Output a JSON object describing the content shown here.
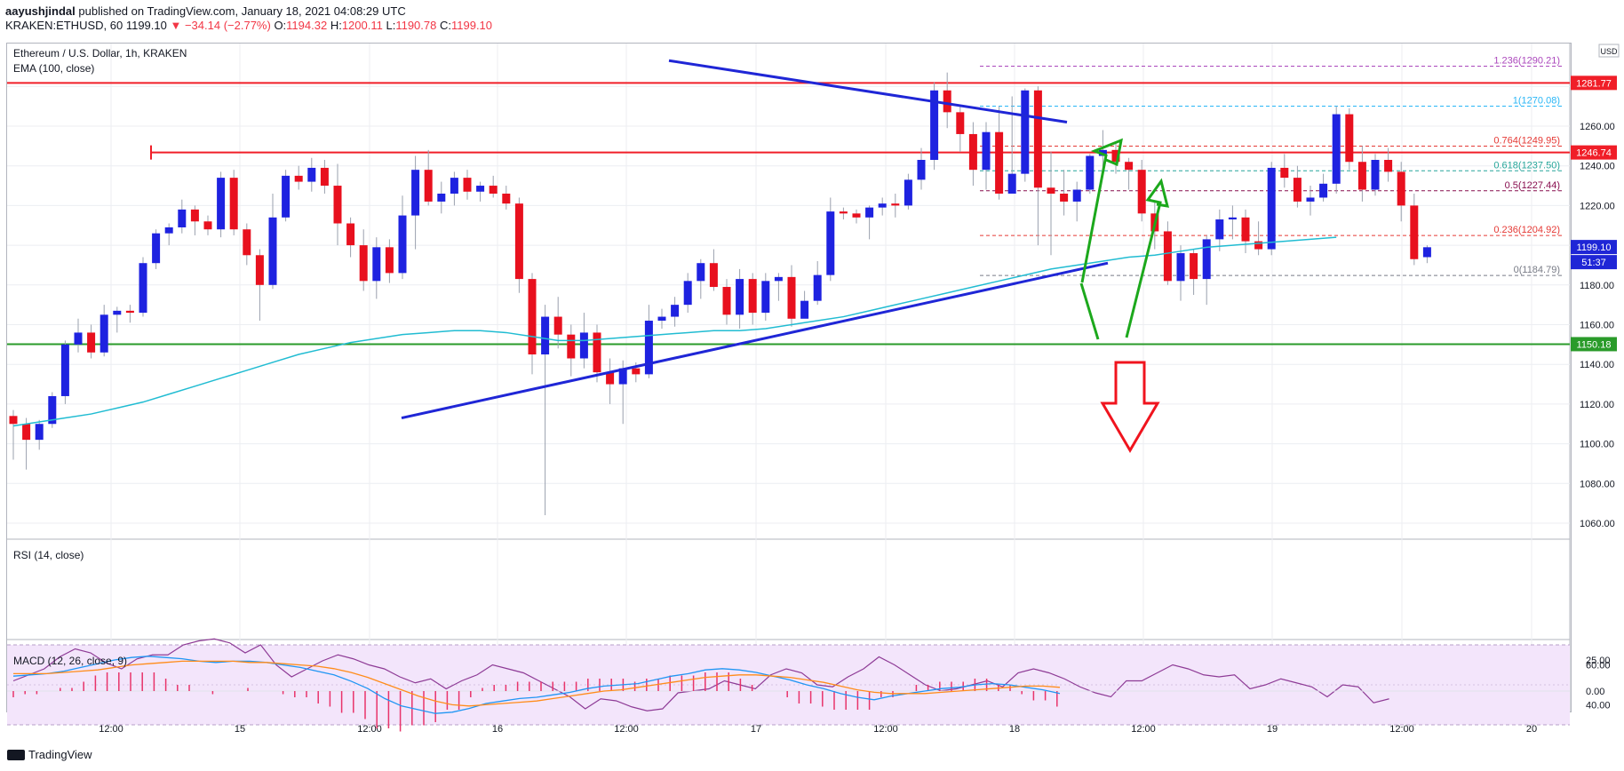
{
  "header": {
    "author": "aayushjindal",
    "published_text": "published on TradingView.com, January 18, 2021 04:08:29 UTC",
    "symbol_line": "KRAKEN:ETHUSD, 60",
    "last": "1199.10",
    "change": "▼ −34.14 (−2.77%)",
    "o_label": "O:",
    "o": "1194.32",
    "h_label": "H:",
    "h": "1200.11",
    "l_label": "L:",
    "l": "1190.78",
    "c_label": "C:",
    "c": "1199.10"
  },
  "legend": {
    "title": "Ethereum / U.S. Dollar, 1h, KRAKEN",
    "ema": "EMA (100, close)",
    "rsi": "RSI (14, close)",
    "macd": "MACD (12, 26, close, 9)"
  },
  "currency_button": "USD",
  "countdown": "51:37",
  "footer": {
    "brand": "TradingView"
  },
  "colors": {
    "up": "#1e22e0",
    "down": "#e8101e",
    "ema": "#21bcd2",
    "trend": "#1f26d6",
    "resistance": "#f01e28",
    "support": "#2a9b2a",
    "arrow_green": "#1ca81c",
    "arrow_red": "#f0141e",
    "rsi": "#8e3b96",
    "macd": "#2196f3",
    "signal": "#ff8c1a",
    "hist": "#e8336a"
  },
  "chart_data": {
    "type": "candlestick",
    "title": "Ethereum / U.S. Dollar, 1h, KRAKEN",
    "price_axis": {
      "ticks": [
        1060,
        1080,
        1100,
        1120,
        1140,
        1160,
        1180,
        1200,
        1220,
        1240,
        1260,
        1280
      ],
      "top_label": "1"
    },
    "time_axis": [
      "12:00",
      "15",
      "12:00",
      "16",
      "12:00",
      "17",
      "12:00",
      "18",
      "12:00",
      "19",
      "12:00",
      "20"
    ],
    "candles": [
      [
        1114,
        1110,
        1117,
        1092
      ],
      [
        1110,
        1102,
        1113,
        1087
      ],
      [
        1102,
        1110,
        1112,
        1097
      ],
      [
        1110,
        1124,
        1126,
        1108
      ],
      [
        1124,
        1150,
        1152,
        1120
      ],
      [
        1150,
        1156,
        1163,
        1146
      ],
      [
        1156,
        1146,
        1160,
        1143
      ],
      [
        1146,
        1165,
        1170,
        1144
      ],
      [
        1165,
        1167,
        1169,
        1156
      ],
      [
        1167,
        1166,
        1170,
        1161
      ],
      [
        1166,
        1191,
        1194,
        1164
      ],
      [
        1191,
        1206,
        1208,
        1188
      ],
      [
        1206,
        1209,
        1211,
        1200
      ],
      [
        1209,
        1218,
        1223,
        1206
      ],
      [
        1218,
        1212,
        1220,
        1205
      ],
      [
        1212,
        1208,
        1215,
        1205
      ],
      [
        1208,
        1234,
        1237,
        1204
      ],
      [
        1234,
        1208,
        1238,
        1205
      ],
      [
        1208,
        1195,
        1211,
        1190
      ],
      [
        1195,
        1180,
        1198,
        1162
      ],
      [
        1180,
        1214,
        1226,
        1178
      ],
      [
        1214,
        1235,
        1238,
        1212
      ],
      [
        1235,
        1232,
        1240,
        1228
      ],
      [
        1232,
        1239,
        1244,
        1227
      ],
      [
        1239,
        1230,
        1243,
        1226
      ],
      [
        1230,
        1211,
        1241,
        1200
      ],
      [
        1211,
        1200,
        1214,
        1194
      ],
      [
        1200,
        1182,
        1208,
        1177
      ],
      [
        1182,
        1199,
        1204,
        1173
      ],
      [
        1199,
        1186,
        1203,
        1181
      ],
      [
        1186,
        1215,
        1225,
        1183
      ],
      [
        1215,
        1238,
        1245,
        1198
      ],
      [
        1238,
        1222,
        1248,
        1220
      ],
      [
        1222,
        1226,
        1232,
        1216
      ],
      [
        1226,
        1234,
        1237,
        1220
      ],
      [
        1234,
        1227,
        1238,
        1223
      ],
      [
        1227,
        1230,
        1232,
        1222
      ],
      [
        1230,
        1226,
        1235,
        1224
      ],
      [
        1226,
        1221,
        1230,
        1218
      ],
      [
        1221,
        1183,
        1224,
        1176
      ],
      [
        1183,
        1145,
        1186,
        1135
      ],
      [
        1145,
        1164,
        1170,
        1064
      ],
      [
        1164,
        1155,
        1174,
        1148
      ],
      [
        1155,
        1143,
        1160,
        1134
      ],
      [
        1143,
        1156,
        1166,
        1138
      ],
      [
        1156,
        1136,
        1160,
        1131
      ],
      [
        1136,
        1130,
        1143,
        1120
      ],
      [
        1130,
        1138,
        1142,
        1110
      ],
      [
        1138,
        1135,
        1141,
        1131
      ],
      [
        1135,
        1162,
        1170,
        1133
      ],
      [
        1162,
        1164,
        1168,
        1158
      ],
      [
        1164,
        1170,
        1174,
        1159
      ],
      [
        1170,
        1182,
        1186,
        1166
      ],
      [
        1182,
        1191,
        1193,
        1173
      ],
      [
        1191,
        1179,
        1198,
        1177
      ],
      [
        1179,
        1165,
        1183,
        1160
      ],
      [
        1165,
        1183,
        1188,
        1158
      ],
      [
        1183,
        1166,
        1186,
        1160
      ],
      [
        1166,
        1182,
        1186,
        1162
      ],
      [
        1182,
        1184,
        1186,
        1172
      ],
      [
        1184,
        1163,
        1190,
        1159
      ],
      [
        1163,
        1172,
        1177,
        1167
      ],
      [
        1172,
        1185,
        1192,
        1170
      ],
      [
        1185,
        1217,
        1224,
        1182
      ],
      [
        1217,
        1216,
        1219,
        1213
      ],
      [
        1216,
        1214,
        1218,
        1211
      ],
      [
        1214,
        1219,
        1220,
        1203
      ],
      [
        1219,
        1221,
        1224,
        1215
      ],
      [
        1221,
        1220,
        1226,
        1214
      ],
      [
        1220,
        1233,
        1236,
        1218
      ],
      [
        1233,
        1243,
        1249,
        1228
      ],
      [
        1243,
        1278,
        1282,
        1238
      ],
      [
        1278,
        1267,
        1287,
        1259
      ],
      [
        1267,
        1256,
        1270,
        1247
      ],
      [
        1256,
        1238,
        1262,
        1230
      ],
      [
        1238,
        1257,
        1262,
        1228
      ],
      [
        1257,
        1226,
        1270,
        1223
      ],
      [
        1226,
        1236,
        1275,
        1230
      ],
      [
        1236,
        1278,
        1279,
        1232
      ],
      [
        1278,
        1229,
        1280,
        1200
      ],
      [
        1229,
        1226,
        1247,
        1195
      ],
      [
        1226,
        1222,
        1238,
        1215
      ],
      [
        1222,
        1228,
        1232,
        1212
      ],
      [
        1228,
        1245,
        1246,
        1226
      ],
      [
        1245,
        1248,
        1258,
        1238
      ],
      [
        1248,
        1242,
        1252,
        1236
      ],
      [
        1242,
        1238,
        1244,
        1228
      ],
      [
        1238,
        1216,
        1243,
        1212
      ],
      [
        1216,
        1207,
        1222,
        1198
      ],
      [
        1207,
        1182,
        1212,
        1180
      ],
      [
        1182,
        1196,
        1200,
        1172
      ],
      [
        1196,
        1183,
        1198,
        1175
      ],
      [
        1183,
        1203,
        1205,
        1170
      ],
      [
        1203,
        1213,
        1218,
        1197
      ],
      [
        1213,
        1214,
        1220,
        1203
      ],
      [
        1214,
        1202,
        1218,
        1196
      ],
      [
        1202,
        1198,
        1212,
        1195
      ],
      [
        1198,
        1239,
        1242,
        1195
      ],
      [
        1239,
        1234,
        1246,
        1229
      ],
      [
        1234,
        1222,
        1240,
        1219
      ],
      [
        1222,
        1224,
        1230,
        1215
      ],
      [
        1224,
        1231,
        1236,
        1222
      ],
      [
        1231,
        1266,
        1270,
        1226
      ],
      [
        1266,
        1242,
        1269,
        1238
      ],
      [
        1242,
        1228,
        1250,
        1222
      ],
      [
        1228,
        1243,
        1246,
        1225
      ],
      [
        1243,
        1237,
        1249,
        1232
      ],
      [
        1237,
        1220,
        1242,
        1212
      ],
      [
        1220,
        1193,
        1226,
        1190
      ],
      [
        1194,
        1199,
        1200,
        1191
      ]
    ],
    "ema100": [
      1109,
      1111,
      1113,
      1115,
      1118,
      1121,
      1125,
      1129,
      1133,
      1137,
      1141,
      1145,
      1148,
      1151,
      1153,
      1155,
      1156,
      1157,
      1157,
      1156,
      1154,
      1152,
      1152,
      1153,
      1154,
      1155,
      1156,
      1157,
      1157,
      1158,
      1160,
      1162,
      1164,
      1167,
      1170,
      1173,
      1176,
      1179,
      1182,
      1185,
      1188,
      1190,
      1192,
      1194,
      1195,
      1197,
      1199,
      1200,
      1201,
      1202,
      1203,
      1204
    ],
    "fibonacci": [
      {
        "ratio": "1.236",
        "value": 1290.21,
        "label": "1.236(1290.21)",
        "color": "#ab47bc"
      },
      {
        "ratio": "1",
        "value": 1270.08,
        "label": "1(1270.08)",
        "color": "#29b6f6"
      },
      {
        "ratio": "0.764",
        "value": 1249.95,
        "label": "0.764(1249.95)",
        "color": "#e53935"
      },
      {
        "ratio": "0.618",
        "value": 1237.5,
        "label": "0.618(1237.50)",
        "color": "#26a69a"
      },
      {
        "ratio": "0.5",
        "value": 1227.44,
        "label": "0.5(1227.44)",
        "color": "#880e4f"
      },
      {
        "ratio": "0.236",
        "value": 1204.92,
        "label": "0.236(1204.92)",
        "color": "#e53935"
      },
      {
        "ratio": "0",
        "value": 1184.79,
        "label": "0(1184.79)",
        "color": "#787b86"
      }
    ],
    "levels": [
      {
        "label": "1281.77",
        "value": 1281.77,
        "color": "#f01e28"
      },
      {
        "label": "1246.74",
        "value": 1246.74,
        "color": "#f01e28"
      },
      {
        "label": "1199.10",
        "value": 1199.1,
        "color": "#1f26d6"
      },
      {
        "label": "1150.18",
        "value": 1150.18,
        "color": "#2a9b2a"
      }
    ],
    "rsi": {
      "ticks": [
        40,
        60
      ],
      "band": [
        30,
        70
      ],
      "values": [
        52,
        55,
        58,
        64,
        68,
        66,
        61,
        58,
        63,
        65,
        65,
        70,
        72,
        73,
        71,
        66,
        70,
        60,
        54,
        58,
        62,
        65,
        63,
        60,
        58,
        54,
        51,
        53,
        48,
        52,
        55,
        60,
        58,
        56,
        52,
        48,
        44,
        38,
        43,
        42,
        39,
        37,
        38,
        46,
        47,
        48,
        52,
        50,
        48,
        55,
        58,
        56,
        50,
        49,
        54,
        58,
        64,
        60,
        55,
        50,
        47,
        48,
        50,
        52,
        49,
        56,
        58,
        56,
        53,
        49,
        46,
        44,
        52,
        52,
        56,
        60,
        58,
        55,
        54,
        55,
        48,
        50,
        53,
        51,
        49,
        44,
        50,
        49,
        41,
        43
      ]
    },
    "macd": {
      "ticks": [
        0,
        25
      ],
      "macd": [
        12,
        13,
        14,
        16,
        19,
        22,
        25,
        27,
        28,
        27,
        26,
        24,
        23,
        24,
        24,
        23,
        21,
        19,
        16,
        13,
        8,
        2,
        -6,
        -12,
        -15,
        -18,
        -17,
        -14,
        -10,
        -8,
        -6,
        -5,
        -3,
        -1,
        2,
        4,
        5,
        6,
        9,
        12,
        14,
        17,
        18,
        17,
        15,
        12,
        9,
        5,
        2,
        -2,
        -5,
        -7,
        -4,
        -2,
        0,
        2,
        3,
        5,
        6,
        5,
        3,
        1,
        -2
      ],
      "signal": [
        14,
        14,
        14,
        15,
        16,
        17,
        19,
        21,
        22,
        23,
        24,
        24,
        24,
        24,
        23,
        23,
        22,
        21,
        20,
        18,
        15,
        11,
        6,
        1,
        -4,
        -8,
        -11,
        -12,
        -11,
        -10,
        -9,
        -8,
        -6,
        -4,
        -2,
        0,
        1,
        3,
        5,
        7,
        9,
        11,
        12,
        13,
        13,
        12,
        11,
        9,
        7,
        4,
        1,
        -1,
        -2,
        -2,
        -2,
        -1,
        0,
        1,
        2,
        3,
        4,
        4,
        3
      ],
      "hist_count": 90
    }
  }
}
